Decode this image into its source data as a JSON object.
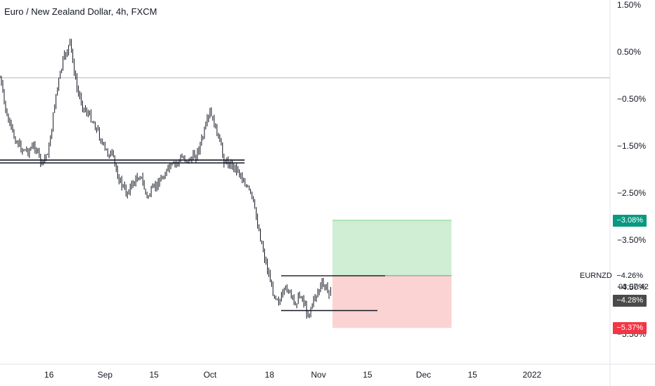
{
  "title": "Euro / New Zealand Dollar, 4h, FXCM",
  "symbol": "EURNZD",
  "countdown": "03:07:42",
  "colors": {
    "candle": "#131722",
    "grid_line": "#b2b5be",
    "target_zone": "#cfeed3",
    "stop_zone": "#fbd3d3",
    "target_label": "#089981",
    "stop_label": "#f23645",
    "last_label": "#4a4a4a"
  },
  "labels": {
    "target": "−3.08%",
    "current": "−4.26%",
    "last": "−4.28%",
    "stop": "−5.37%"
  },
  "chart_data": {
    "type": "line",
    "title": "Euro / New Zealand Dollar, 4h, FXCM",
    "xlabel": "",
    "ylabel": "",
    "y_ticks": [
      "1.50%",
      "0.50%",
      "−0.50%",
      "−1.50%",
      "−2.50%",
      "−3.50%",
      "−4.50%",
      "−5.50%"
    ],
    "y_tick_values": [
      1.5,
      0.5,
      -0.5,
      -1.5,
      -2.5,
      -3.5,
      -4.5,
      -5.5
    ],
    "ylim": [
      -6.1,
      1.6
    ],
    "x_ticks": [
      "16",
      "Sep",
      "15",
      "Oct",
      "18",
      "Nov",
      "15",
      "Dec",
      "15",
      "2022"
    ],
    "x_tick_dates": [
      "2021-08-16",
      "2021-09-01",
      "2021-09-15",
      "2021-10-01",
      "2021-10-18",
      "2021-11-01",
      "2021-11-15",
      "2021-12-01",
      "2021-12-15",
      "2022-01-01"
    ],
    "series": [
      {
        "values_date": [
          "2021-08-02",
          "2021-08-04",
          "2021-08-06",
          "2021-08-08",
          "2021-08-10",
          "2021-08-12",
          "2021-08-14",
          "2021-08-16",
          "2021-08-18",
          "2021-08-20",
          "2021-08-22",
          "2021-08-24",
          "2021-08-26",
          "2021-08-28",
          "2021-08-30",
          "2021-09-01",
          "2021-09-03",
          "2021-09-05",
          "2021-09-07",
          "2021-09-09",
          "2021-09-11",
          "2021-09-13",
          "2021-09-15",
          "2021-09-17",
          "2021-09-19",
          "2021-09-21",
          "2021-09-23",
          "2021-09-25",
          "2021-09-27",
          "2021-09-29",
          "2021-10-01",
          "2021-10-03",
          "2021-10-05",
          "2021-10-07",
          "2021-10-09",
          "2021-10-11",
          "2021-10-13",
          "2021-10-15",
          "2021-10-17",
          "2021-10-19",
          "2021-10-21",
          "2021-10-23",
          "2021-10-25",
          "2021-10-27",
          "2021-10-29",
          "2021-10-31",
          "2021-11-02",
          "2021-11-04",
          "2021-11-05"
        ],
        "values": [
          -0.05,
          -0.9,
          -1.3,
          -1.55,
          -1.6,
          -1.5,
          -1.9,
          -1.55,
          -0.4,
          0.3,
          0.7,
          -0.3,
          -0.7,
          -0.9,
          -1.2,
          -1.6,
          -1.7,
          -2.2,
          -2.5,
          -2.3,
          -2.1,
          -2.6,
          -2.4,
          -2.2,
          -2.0,
          -1.9,
          -1.75,
          -1.8,
          -1.7,
          -1.3,
          -0.8,
          -1.2,
          -1.8,
          -1.9,
          -2.0,
          -2.3,
          -2.6,
          -3.3,
          -4.0,
          -4.6,
          -4.8,
          -4.5,
          -4.85,
          -4.65,
          -5.1,
          -4.7,
          -4.45,
          -4.6,
          -4.26
        ]
      }
    ],
    "horizontal_levels": [
      -0.05,
      -1.8,
      -1.86,
      -4.26,
      -4.35,
      -5.0
    ],
    "position": {
      "start_date": "2021-11-05",
      "end_date": "2021-12-09",
      "entry": -4.26,
      "target": -3.08,
      "stop": -5.37
    }
  }
}
